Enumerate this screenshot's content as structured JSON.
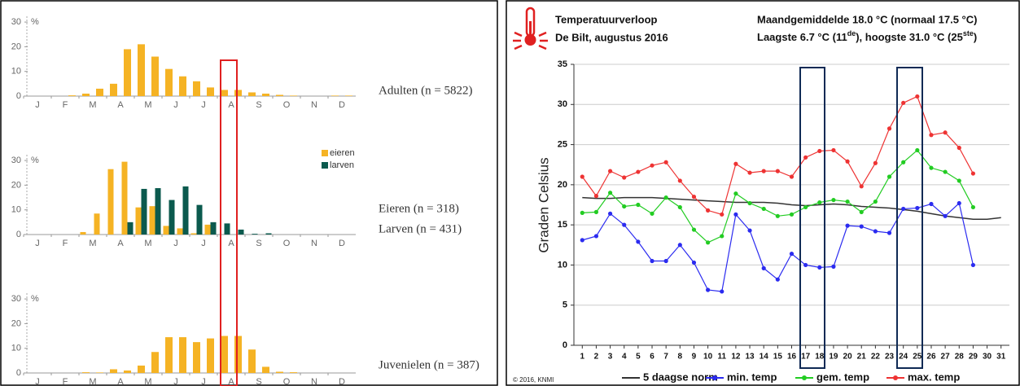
{
  "chart_data": [
    {
      "type": "bar",
      "ylabel": "%",
      "color": "#f5b324",
      "categories": [
        "J",
        null,
        "F",
        null,
        "M",
        null,
        "A",
        null,
        "M",
        null,
        "J",
        null,
        "J",
        null,
        "A",
        null,
        "S",
        null,
        "O",
        null,
        "N",
        null,
        "D",
        null
      ],
      "values": [
        0,
        0,
        0,
        0.3,
        1,
        3,
        5,
        19,
        21,
        16,
        11,
        8,
        6,
        3.5,
        2.5,
        2.5,
        1.5,
        1,
        0.5,
        0.2,
        0,
        0,
        0.2,
        0.2
      ],
      "ylim": [
        0,
        33
      ],
      "yticks": [
        0,
        10,
        20,
        30
      ],
      "annotations": [
        "Adulten (n = 5822)"
      ]
    },
    {
      "type": "bar",
      "ylabel": "%",
      "categories": [
        "J",
        null,
        "F",
        null,
        "M",
        null,
        "A",
        null,
        "M",
        null,
        "J",
        null,
        "J",
        null,
        "A",
        null,
        "S",
        null,
        "O",
        null,
        "N",
        null,
        "D",
        null
      ],
      "series": [
        {
          "name": "eieren",
          "color": "#f5b324",
          "values": [
            0,
            0,
            0,
            0,
            1,
            8.5,
            26.5,
            29.5,
            11,
            11.5,
            3.5,
            2.5,
            0.5,
            4,
            0,
            0,
            0,
            0,
            0,
            0,
            0,
            0,
            0,
            0
          ]
        },
        {
          "name": "larven",
          "color": "#0b5a4e",
          "values": [
            0,
            0,
            0,
            0,
            0,
            0,
            0,
            5,
            18.5,
            18.8,
            14,
            19.5,
            12,
            5,
            4.5,
            2,
            0.3,
            0.5,
            0,
            0,
            0,
            0,
            0,
            0
          ]
        }
      ],
      "ylim": [
        0,
        33
      ],
      "yticks": [
        0,
        10,
        20,
        30
      ],
      "annotations": [
        "Eieren (n = 318)",
        "Larven (n = 431)"
      ]
    },
    {
      "type": "bar",
      "ylabel": "%",
      "color": "#f5b324",
      "categories": [
        "J",
        null,
        "F",
        null,
        "M",
        null,
        "A",
        null,
        "M",
        null,
        "J",
        null,
        "J",
        null,
        "A",
        null,
        "S",
        null,
        "O",
        null,
        "N",
        null,
        "D",
        null
      ],
      "values": [
        0,
        0,
        0,
        0,
        0.3,
        0.2,
        1.5,
        1,
        3,
        8.5,
        14.5,
        14.5,
        12.5,
        14,
        15,
        15,
        9.5,
        2.5,
        0.5,
        0.3,
        0,
        0,
        0,
        0
      ],
      "ylim": [
        0,
        33
      ],
      "yticks": [
        0,
        10,
        20,
        30
      ],
      "annotations": [
        "Juvenielen (n = 387)"
      ]
    },
    {
      "type": "line",
      "title": "Temperatuurverloop",
      "subtitle": "De Bilt, augustus 2016",
      "average": "Maandgemiddelde 18.0 °C (normaal 17.5 °C)",
      "extremes": [
        "Laagste 6.7 °C (11",
        "de",
        "), hoogste 31.0 °C (25",
        "ste",
        ")"
      ],
      "ylabel": "Graden Celsius",
      "source": "© 2016, KNMI",
      "grid": true,
      "x": [
        1,
        2,
        3,
        4,
        5,
        6,
        7,
        8,
        9,
        10,
        11,
        12,
        13,
        14,
        15,
        16,
        17,
        18,
        19,
        20,
        21,
        22,
        23,
        24,
        25,
        26,
        27,
        28,
        29,
        30,
        31
      ],
      "series": [
        {
          "name": "5 daagse norm",
          "color": "#333333",
          "markers": false,
          "values": [
            18.4,
            18.3,
            18.3,
            18.4,
            18.4,
            18.4,
            18.3,
            18.2,
            18.1,
            18.0,
            17.9,
            17.8,
            17.8,
            17.8,
            17.7,
            17.5,
            17.4,
            17.5,
            17.6,
            17.5,
            17.3,
            17.2,
            17.1,
            16.9,
            16.7,
            16.4,
            16.1,
            15.9,
            15.7,
            15.7,
            15.9
          ]
        },
        {
          "name": "min. temp",
          "color": "#2b2bf0",
          "markers": true,
          "values": [
            13.1,
            13.6,
            16.4,
            15.0,
            12.9,
            10.5,
            10.5,
            12.5,
            10.3,
            6.9,
            6.7,
            16.3,
            14.3,
            9.6,
            8.2,
            11.4,
            10.0,
            9.7,
            9.8,
            14.9,
            14.8,
            14.2,
            14.0,
            17.0,
            17.1,
            17.6,
            16.1,
            17.7,
            10.0,
            null,
            null
          ]
        },
        {
          "name": "gem. temp",
          "color": "#22cc22",
          "markers": true,
          "values": [
            16.5,
            16.6,
            19.0,
            17.3,
            17.5,
            16.4,
            18.4,
            17.2,
            14.4,
            12.8,
            13.6,
            18.9,
            17.7,
            17.0,
            16.1,
            16.3,
            17.2,
            17.8,
            18.1,
            17.9,
            16.6,
            17.9,
            21.0,
            22.8,
            24.3,
            22.1,
            21.6,
            20.5,
            17.2,
            null,
            null
          ]
        },
        {
          "name": "max. temp",
          "color": "#ee3333",
          "markers": true,
          "values": [
            21.0,
            18.6,
            21.7,
            20.9,
            21.6,
            22.4,
            22.8,
            20.5,
            18.5,
            16.8,
            16.3,
            22.6,
            21.5,
            21.7,
            21.7,
            21.0,
            23.4,
            24.2,
            24.3,
            22.9,
            19.8,
            22.7,
            27.0,
            30.2,
            31.0,
            26.2,
            26.5,
            24.6,
            21.4,
            null,
            null
          ]
        }
      ],
      "xlim": [
        0.4,
        31.6
      ],
      "xticks": [
        1,
        2,
        3,
        4,
        5,
        6,
        7,
        8,
        9,
        10,
        11,
        12,
        13,
        14,
        15,
        16,
        17,
        18,
        19,
        20,
        21,
        22,
        23,
        24,
        25,
        26,
        27,
        28,
        29,
        30,
        31
      ],
      "ylim": [
        0,
        35
      ],
      "yticks": [
        0,
        5,
        10,
        15,
        20,
        25,
        30,
        35
      ]
    }
  ]
}
